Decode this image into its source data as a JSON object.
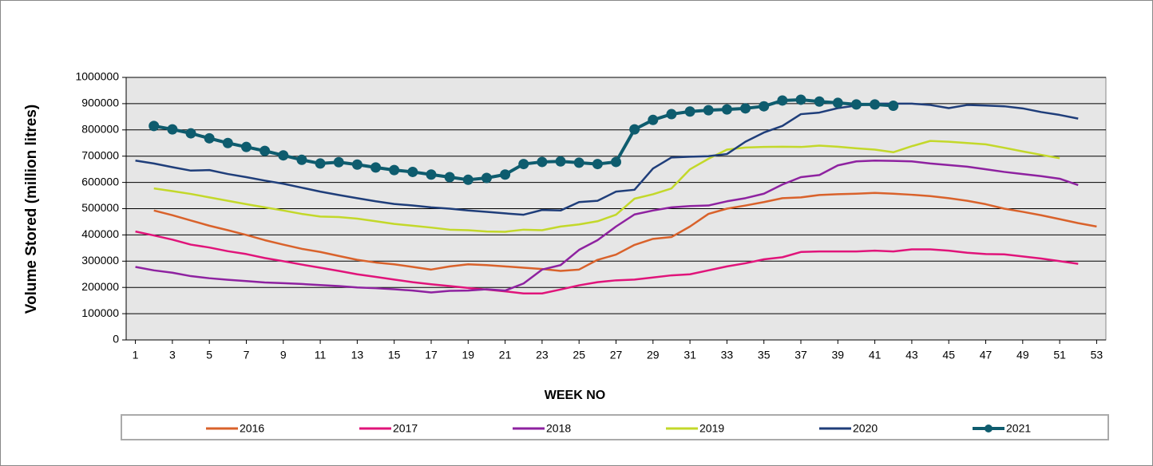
{
  "chart_data": {
    "type": "line",
    "y_label": "Volume Stored (million litres)",
    "x_label": "WEEK NO",
    "x": [
      1,
      2,
      3,
      4,
      5,
      6,
      7,
      8,
      9,
      10,
      11,
      12,
      13,
      14,
      15,
      16,
      17,
      18,
      19,
      20,
      21,
      22,
      23,
      24,
      25,
      26,
      27,
      28,
      29,
      30,
      31,
      32,
      33,
      34,
      35,
      36,
      37,
      38,
      39,
      40,
      41,
      42,
      43,
      44,
      45,
      46,
      47,
      48,
      49,
      50,
      51,
      52,
      53
    ],
    "xlim": [
      0.5,
      53.5
    ],
    "xticks": [
      1,
      3,
      5,
      7,
      9,
      11,
      13,
      15,
      17,
      19,
      21,
      23,
      25,
      27,
      29,
      31,
      33,
      35,
      37,
      39,
      41,
      43,
      45,
      47,
      49,
      51,
      53
    ],
    "ylim": [
      0,
      1000000
    ],
    "yticks": [
      0,
      100000,
      200000,
      300000,
      400000,
      500000,
      600000,
      700000,
      800000,
      900000,
      1000000
    ],
    "grid": true,
    "series": [
      {
        "name": "2016",
        "color": "#d9622b",
        "marker": false,
        "values": [
          null,
          493000,
          475000,
          455000,
          435000,
          418000,
          400000,
          380000,
          363000,
          347000,
          335000,
          320000,
          305000,
          295000,
          288000,
          278000,
          268000,
          280000,
          288000,
          285000,
          280000,
          275000,
          270000,
          263000,
          268000,
          305000,
          325000,
          362000,
          385000,
          392000,
          432000,
          480000,
          500000,
          512000,
          525000,
          540000,
          543000,
          552000,
          555000,
          557000,
          560000,
          557000,
          553000,
          548000,
          540000,
          530000,
          517000,
          500000,
          488000,
          475000,
          460000,
          445000,
          432000
        ]
      },
      {
        "name": "2017",
        "color": "#e0147a",
        "marker": false,
        "values": [
          413000,
          398000,
          382000,
          363000,
          352000,
          338000,
          327000,
          312000,
          300000,
          287000,
          275000,
          263000,
          250000,
          240000,
          230000,
          220000,
          212000,
          205000,
          198000,
          192000,
          185000,
          177000,
          177000,
          192000,
          208000,
          220000,
          227000,
          230000,
          238000,
          246000,
          250000,
          265000,
          280000,
          292000,
          307000,
          315000,
          335000,
          337000,
          337000,
          337000,
          340000,
          337000,
          345000,
          345000,
          340000,
          332000,
          327000,
          326000,
          318000,
          310000,
          300000,
          290000,
          null
        ]
      },
      {
        "name": "2018",
        "color": "#8e22a0",
        "marker": false,
        "values": [
          278000,
          265000,
          256000,
          243000,
          235000,
          229000,
          224000,
          219000,
          216000,
          213000,
          209000,
          205000,
          200000,
          197000,
          193000,
          188000,
          181000,
          187000,
          188000,
          193000,
          188000,
          215000,
          268000,
          285000,
          343000,
          380000,
          432000,
          478000,
          493000,
          505000,
          510000,
          512000,
          528000,
          540000,
          557000,
          592000,
          620000,
          628000,
          665000,
          680000,
          683000,
          682000,
          680000,
          672000,
          666000,
          660000,
          650000,
          640000,
          632000,
          624000,
          614000,
          590000,
          null
        ]
      },
      {
        "name": "2019",
        "color": "#c3d82a",
        "marker": false,
        "values": [
          null,
          577000,
          567000,
          556000,
          543000,
          530000,
          517000,
          505000,
          493000,
          480000,
          470000,
          468000,
          462000,
          452000,
          442000,
          435000,
          428000,
          420000,
          418000,
          413000,
          412000,
          420000,
          418000,
          432000,
          440000,
          452000,
          477000,
          538000,
          555000,
          577000,
          650000,
          690000,
          725000,
          733000,
          735000,
          736000,
          735000,
          740000,
          736000,
          730000,
          725000,
          715000,
          738000,
          758000,
          755000,
          750000,
          745000,
          732000,
          718000,
          705000,
          692000,
          null,
          null
        ]
      },
      {
        "name": "2020",
        "color": "#1f3e7a",
        "marker": false,
        "values": [
          683000,
          672000,
          658000,
          645000,
          647000,
          632000,
          620000,
          607000,
          595000,
          580000,
          565000,
          552000,
          540000,
          528000,
          518000,
          512000,
          505000,
          500000,
          493000,
          488000,
          482000,
          477000,
          495000,
          493000,
          525000,
          530000,
          565000,
          572000,
          653000,
          695000,
          698000,
          700000,
          708000,
          755000,
          790000,
          815000,
          860000,
          866000,
          883000,
          893000,
          900000,
          900000,
          900000,
          895000,
          883000,
          895000,
          893000,
          890000,
          882000,
          868000,
          857000,
          843000,
          null
        ]
      },
      {
        "name": "2021",
        "color": "#0e5c6e",
        "marker": true,
        "values": [
          null,
          815000,
          802000,
          787000,
          768000,
          750000,
          735000,
          720000,
          703000,
          686000,
          672000,
          677000,
          668000,
          657000,
          647000,
          640000,
          630000,
          620000,
          610000,
          617000,
          630000,
          670000,
          678000,
          680000,
          675000,
          670000,
          678000,
          802000,
          838000,
          860000,
          870000,
          875000,
          878000,
          882000,
          890000,
          912000,
          915000,
          908000,
          903000,
          897000,
          897000,
          892000,
          null,
          null,
          null,
          null,
          null,
          null,
          null,
          null,
          null,
          null,
          null
        ]
      }
    ]
  }
}
